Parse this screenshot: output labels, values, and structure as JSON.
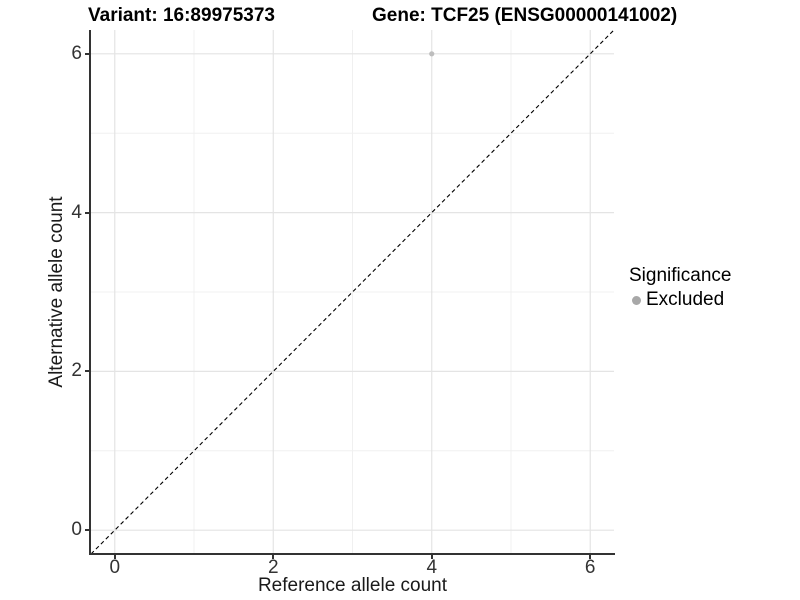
{
  "header": {
    "variant_title": "Variant: 16:89975373",
    "gene_title": "Gene: TCF25 (ENSG00000141002)"
  },
  "chart_data": {
    "type": "scatter",
    "xlabel": "Reference allele count",
    "ylabel": "Alternative allele count",
    "xlim": [
      -0.3,
      6.3
    ],
    "ylim": [
      -0.3,
      6.3
    ],
    "x_major_ticks": [
      0,
      2,
      4,
      6
    ],
    "y_major_ticks": [
      0,
      2,
      4,
      6
    ],
    "x_minor_gridlines": [
      1,
      3,
      5
    ],
    "y_minor_gridlines": [
      1,
      3,
      5
    ],
    "grid": "on",
    "points": [
      {
        "x": 4,
        "y": 6,
        "series": "Excluded"
      }
    ],
    "identity_line": {
      "style": "dashed",
      "from": [
        -0.3,
        -0.3
      ],
      "to": [
        6.3,
        6.3
      ],
      "color": "#000000"
    },
    "legend": {
      "title": "Significance",
      "position": "right",
      "items": [
        {
          "label": "Excluded",
          "color": "#a8a8a8",
          "marker": "circle"
        }
      ]
    },
    "colors": {
      "background": "#ffffff",
      "grid_major": "#e4e4e4",
      "grid_minor": "#f0f0f0",
      "axis_line": "#333333",
      "tick_label": "#333333",
      "point": "#bdbdbd",
      "title": "#000000"
    }
  }
}
